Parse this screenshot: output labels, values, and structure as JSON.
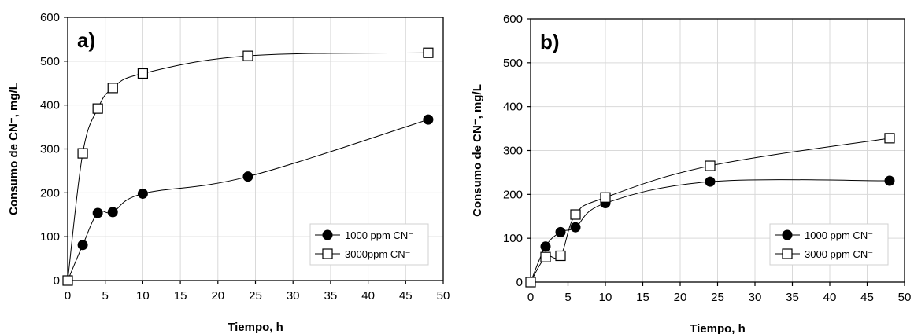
{
  "chart_data": [
    {
      "type": "line",
      "panel_label": "a)",
      "xlabel": "Tiempo, h",
      "ylabel": "Consumo de CN⁻, mg/L",
      "xlim": [
        0,
        50
      ],
      "ylim": [
        0,
        600
      ],
      "xticks": [
        "0",
        "5",
        "10",
        "15",
        "20",
        "25",
        "30",
        "35",
        "40",
        "45",
        "50"
      ],
      "yticks": [
        "0",
        "100",
        "200",
        "300",
        "400",
        "500",
        "600"
      ],
      "grid": true,
      "legend_position": "bottom-right",
      "series": [
        {
          "name": "1000 ppm CN⁻",
          "marker": "filled-circle",
          "x": [
            0,
            2,
            4,
            6,
            10,
            24,
            48
          ],
          "y": [
            0,
            81,
            154,
            156,
            198,
            237,
            367
          ]
        },
        {
          "name": "3000ppm CN⁻",
          "marker": "open-square",
          "x": [
            0,
            2,
            4,
            6,
            10,
            24,
            48
          ],
          "y": [
            0,
            290,
            392,
            439,
            472,
            512,
            519
          ]
        }
      ]
    },
    {
      "type": "line",
      "panel_label": "b)",
      "xlabel": "Tiempo, h",
      "ylabel": "Consumo de CN⁻, mg/L",
      "xlim": [
        0,
        50
      ],
      "ylim": [
        0,
        600
      ],
      "xticks": [
        "0",
        "5",
        "10",
        "15",
        "20",
        "25",
        "30",
        "35",
        "40",
        "45",
        "50"
      ],
      "yticks": [
        "0",
        "100",
        "200",
        "300",
        "400",
        "500",
        "600"
      ],
      "grid": true,
      "legend_position": "bottom-right",
      "series": [
        {
          "name": "1000 ppm CN⁻",
          "marker": "filled-circle",
          "x": [
            0,
            2,
            4,
            6,
            10,
            24,
            48
          ],
          "y": [
            0,
            81,
            114,
            125,
            180,
            229,
            231
          ]
        },
        {
          "name": "3000 ppm CN⁻",
          "marker": "open-square",
          "x": [
            0,
            2,
            4,
            6,
            10,
            24,
            48
          ],
          "y": [
            0,
            57,
            60,
            154,
            193,
            265,
            328
          ]
        }
      ]
    }
  ]
}
